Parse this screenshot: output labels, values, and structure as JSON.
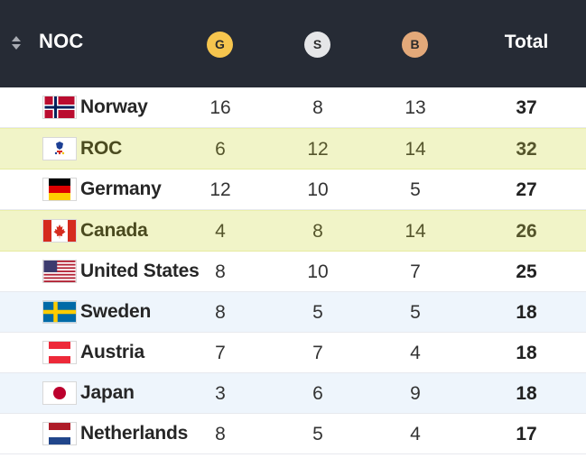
{
  "header": {
    "noc_label": "NOC",
    "gold_label": "G",
    "silver_label": "S",
    "bronze_label": "B",
    "total_label": "Total"
  },
  "colors": {
    "header_bg": "#262b35",
    "gold": "#f6c54e",
    "silver": "#e5e6e8",
    "bronze": "#e3a97a",
    "highlight_row": "#f1f4c8",
    "alt_row": "#eef5fc"
  },
  "rows": [
    {
      "country": "Norway",
      "flag": "norway-flag-icon",
      "gold": "16",
      "silver": "8",
      "bronze": "13",
      "total": "37"
    },
    {
      "country": "ROC",
      "flag": "roc-flag-icon",
      "gold": "6",
      "silver": "12",
      "bronze": "14",
      "total": "32"
    },
    {
      "country": "Germany",
      "flag": "germany-flag-icon",
      "gold": "12",
      "silver": "10",
      "bronze": "5",
      "total": "27"
    },
    {
      "country": "Canada",
      "flag": "canada-flag-icon",
      "gold": "4",
      "silver": "8",
      "bronze": "14",
      "total": "26"
    },
    {
      "country": "United States",
      "flag": "usa-flag-icon",
      "gold": "8",
      "silver": "10",
      "bronze": "7",
      "total": "25"
    },
    {
      "country": "Sweden",
      "flag": "sweden-flag-icon",
      "gold": "8",
      "silver": "5",
      "bronze": "5",
      "total": "18"
    },
    {
      "country": "Austria",
      "flag": "austria-flag-icon",
      "gold": "7",
      "silver": "7",
      "bronze": "4",
      "total": "18"
    },
    {
      "country": "Japan",
      "flag": "japan-flag-icon",
      "gold": "3",
      "silver": "6",
      "bronze": "9",
      "total": "18"
    },
    {
      "country": "Netherlands",
      "flag": "netherlands-flag-icon",
      "gold": "8",
      "silver": "5",
      "bronze": "4",
      "total": "17"
    }
  ]
}
